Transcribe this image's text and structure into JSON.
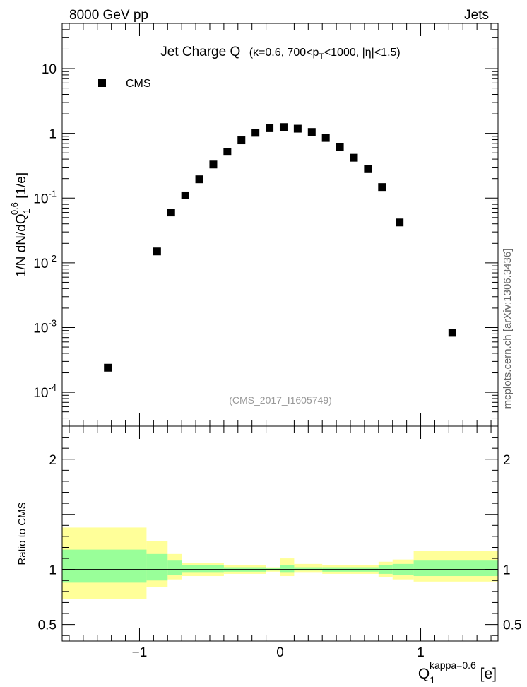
{
  "header": {
    "left": "8000 GeV pp",
    "right": "Jets"
  },
  "side_label": "mcplots.cern.ch [arXiv:1306.3436]",
  "chart_data": [
    {
      "type": "scatter",
      "title": "Jet Charge Q",
      "subtitle_parts": {
        "lead": "(κ=0.6, 700<p",
        "sub": "T",
        "tail": "<1000, |η|<1.5)"
      },
      "ylabel_parts": {
        "main": "1/N dN/dQ",
        "sub": "1",
        "sup": "0.6",
        "unit": " [1/e]"
      },
      "yscale": "log",
      "xlim": [
        -1.55,
        1.55
      ],
      "ylim": [
        3e-05,
        50
      ],
      "y_ticks": [
        {
          "value": 0.0001,
          "base": "10",
          "exp": "-4"
        },
        {
          "value": 0.001,
          "base": "10",
          "exp": "-3"
        },
        {
          "value": 0.01,
          "base": "10",
          "exp": "-2"
        },
        {
          "value": 0.1,
          "base": "10",
          "exp": "-1"
        },
        {
          "value": 1,
          "base": "1",
          "exp": ""
        },
        {
          "value": 10,
          "base": "10",
          "exp": ""
        }
      ],
      "legend": {
        "placement": "top-left",
        "entry": "CMS"
      },
      "watermark": "(CMS_2017_I1605749)",
      "series": [
        {
          "name": "CMS",
          "marker": "square",
          "color": "#000000",
          "points": [
            [
              -1.225,
              0.00024
            ],
            [
              -0.875,
              0.015
            ],
            [
              -0.775,
              0.06
            ],
            [
              -0.675,
              0.11
            ],
            [
              -0.575,
              0.195
            ],
            [
              -0.475,
              0.33
            ],
            [
              -0.375,
              0.52
            ],
            [
              -0.275,
              0.78
            ],
            [
              -0.175,
              1.02
            ],
            [
              -0.075,
              1.2
            ],
            [
              0.025,
              1.25
            ],
            [
              0.125,
              1.18
            ],
            [
              0.225,
              1.05
            ],
            [
              0.325,
              0.85
            ],
            [
              0.425,
              0.62
            ],
            [
              0.525,
              0.42
            ],
            [
              0.625,
              0.28
            ],
            [
              0.725,
              0.148
            ],
            [
              0.85,
              0.042
            ],
            [
              1.225,
              0.00083
            ]
          ]
        }
      ]
    },
    {
      "type": "area",
      "ylabel": "Ratio to CMS",
      "xlabel_parts": {
        "main": "Q",
        "sub": "1",
        "sup": "kappa=0.6",
        "unit": " [e]"
      },
      "xlim": [
        -1.55,
        1.55
      ],
      "ylim": [
        0.35,
        2.3
      ],
      "x_ticks": [
        {
          "value": -1,
          "label": "−1"
        },
        {
          "value": 0,
          "label": "0"
        },
        {
          "value": 1,
          "label": "1"
        }
      ],
      "y_ticks": [
        {
          "value": 0.5,
          "label": "0.5"
        },
        {
          "value": 1,
          "label": "1"
        },
        {
          "value": 2,
          "label": "2"
        }
      ],
      "colors": {
        "outer": "#ffff99",
        "inner": "#99ff99",
        "line": "#000000"
      },
      "bands": [
        {
          "x": [
            -1.55,
            -0.95
          ],
          "outer": [
            0.73,
            1.38
          ],
          "inner": [
            0.88,
            1.18
          ]
        },
        {
          "x": [
            -0.95,
            -0.8
          ],
          "outer": [
            0.84,
            1.26
          ],
          "inner": [
            0.9,
            1.14
          ]
        },
        {
          "x": [
            -0.8,
            -0.7
          ],
          "outer": [
            0.91,
            1.14
          ],
          "inner": [
            0.95,
            1.08
          ]
        },
        {
          "x": [
            -0.7,
            -0.4
          ],
          "outer": [
            0.94,
            1.06
          ],
          "inner": [
            0.97,
            1.04
          ]
        },
        {
          "x": [
            -0.4,
            -0.1
          ],
          "outer": [
            0.96,
            1.04
          ],
          "inner": [
            0.98,
            1.02
          ]
        },
        {
          "x": [
            -0.1,
            0.0
          ],
          "outer": [
            0.98,
            1.02
          ],
          "inner": [
            0.99,
            1.01
          ]
        },
        {
          "x": [
            0.0,
            0.1
          ],
          "outer": [
            0.94,
            1.1
          ],
          "inner": [
            0.97,
            1.04
          ]
        },
        {
          "x": [
            0.1,
            0.3
          ],
          "outer": [
            0.97,
            1.05
          ],
          "inner": [
            0.99,
            1.02
          ]
        },
        {
          "x": [
            0.3,
            0.5
          ],
          "outer": [
            0.96,
            1.04
          ],
          "inner": [
            0.98,
            1.02
          ]
        },
        {
          "x": [
            0.5,
            0.7
          ],
          "outer": [
            0.96,
            1.04
          ],
          "inner": [
            0.98,
            1.02
          ]
        },
        {
          "x": [
            0.7,
            0.8
          ],
          "outer": [
            0.93,
            1.07
          ],
          "inner": [
            0.96,
            1.04
          ]
        },
        {
          "x": [
            0.8,
            0.95
          ],
          "outer": [
            0.91,
            1.09
          ],
          "inner": [
            0.95,
            1.05
          ]
        },
        {
          "x": [
            0.95,
            1.55
          ],
          "outer": [
            0.89,
            1.17
          ],
          "inner": [
            0.94,
            1.08
          ]
        }
      ]
    }
  ]
}
